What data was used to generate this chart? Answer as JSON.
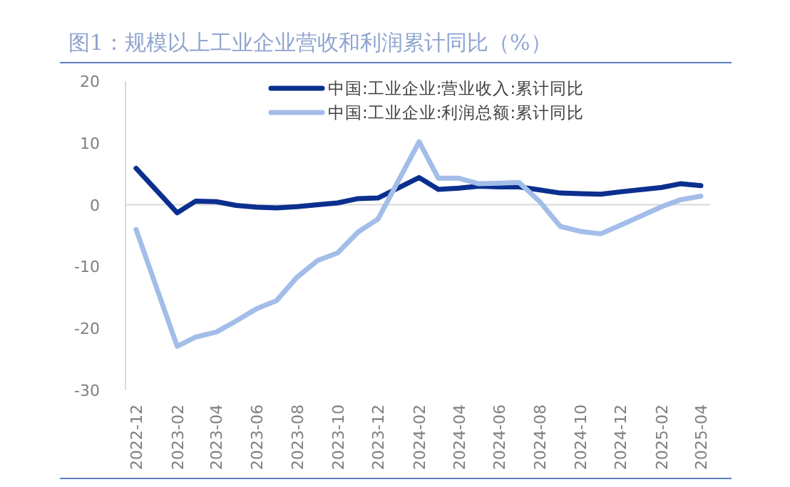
{
  "chart_data": {
    "type": "line",
    "title": "图1：规模以上工业企业营收和利润累计同比（%）",
    "x": [
      "2022-12",
      "2023-02",
      "2023-03",
      "2023-04",
      "2023-05",
      "2023-06",
      "2023-07",
      "2023-08",
      "2023-09",
      "2023-10",
      "2023-11",
      "2023-12",
      "2024-02",
      "2024-03",
      "2024-04",
      "2024-05",
      "2024-06",
      "2024-07",
      "2024-08",
      "2024-09",
      "2024-10",
      "2024-11",
      "2024-12",
      "2025-02",
      "2025-03",
      "2025-04"
    ],
    "series": [
      {
        "name": "中国:工业企业:营业收入:累计同比",
        "color": "#0b2f8f",
        "values": [
          5.9,
          -1.3,
          0.6,
          0.5,
          -0.1,
          -0.4,
          -0.5,
          -0.3,
          0.0,
          0.3,
          1.0,
          1.1,
          4.4,
          2.5,
          2.7,
          3.0,
          2.9,
          2.9,
          2.4,
          1.9,
          1.8,
          1.7,
          2.1,
          2.8,
          3.4,
          3.1
        ]
      },
      {
        "name": "中国:工业企业:利润总额:累计同比",
        "color": "#a3bde9",
        "values": [
          -4.0,
          -22.9,
          -21.4,
          -20.6,
          -18.8,
          -16.8,
          -15.5,
          -11.7,
          -9.0,
          -7.8,
          -4.4,
          -2.3,
          10.2,
          4.3,
          4.3,
          3.4,
          3.5,
          3.6,
          0.5,
          -3.5,
          -4.3,
          -4.7,
          -3.3,
          -0.3,
          0.8,
          1.4
        ]
      }
    ],
    "xlim": [
      "2022-11-15",
      "2025-04-15"
    ],
    "xticks": [
      "2022-12",
      "2023-02",
      "2023-04",
      "2023-06",
      "2023-08",
      "2023-10",
      "2023-12",
      "2024-02",
      "2024-04",
      "2024-06",
      "2024-08",
      "2024-10",
      "2024-12",
      "2025-02",
      "2025-04"
    ],
    "ylim": [
      -30,
      20
    ],
    "yticks": [
      -30,
      -20,
      -10,
      0,
      10,
      20
    ],
    "ref_lines": [
      {
        "axis": "y",
        "value": 0,
        "color": "#d9d9d9"
      }
    ],
    "legend": "top",
    "grid": false,
    "marker": "none",
    "line_style": "solid"
  }
}
